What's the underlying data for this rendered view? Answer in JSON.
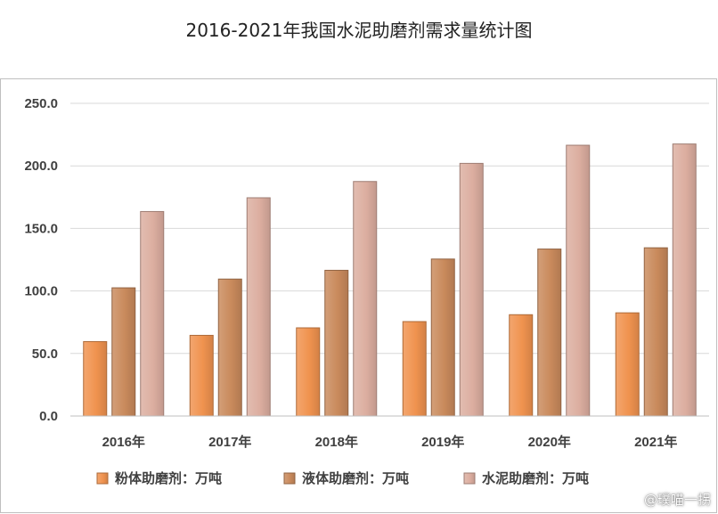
{
  "title": "2016-2021年我国水泥助磨剂需求量统计图",
  "watermark": "@璞喵一拐",
  "chart_data": {
    "type": "bar",
    "categories": [
      "2016年",
      "2017年",
      "2018年",
      "2019年",
      "2020年",
      "2021年"
    ],
    "series": [
      {
        "name": "粉体助磨剂：万吨",
        "values": [
          59.5,
          64.5,
          70.5,
          75.5,
          81.0,
          82.5
        ],
        "color": "#f0934f"
      },
      {
        "name": "液体助磨剂：万吨",
        "values": [
          102.5,
          109.5,
          116.5,
          125.5,
          133.5,
          134.5
        ],
        "color": "#c98a5c"
      },
      {
        "name": "水泥助磨剂：万吨",
        "values": [
          163.5,
          174.5,
          187.5,
          202.0,
          216.5,
          217.5
        ],
        "color": "#dcaea0"
      }
    ],
    "ylim": [
      0,
      250
    ],
    "yticks": [
      "0.0",
      "50.0",
      "100.0",
      "150.0",
      "200.0",
      "250.0"
    ],
    "ytick_values": [
      0,
      50,
      100,
      150,
      200,
      250
    ],
    "grid": true,
    "legend": "bottom"
  }
}
